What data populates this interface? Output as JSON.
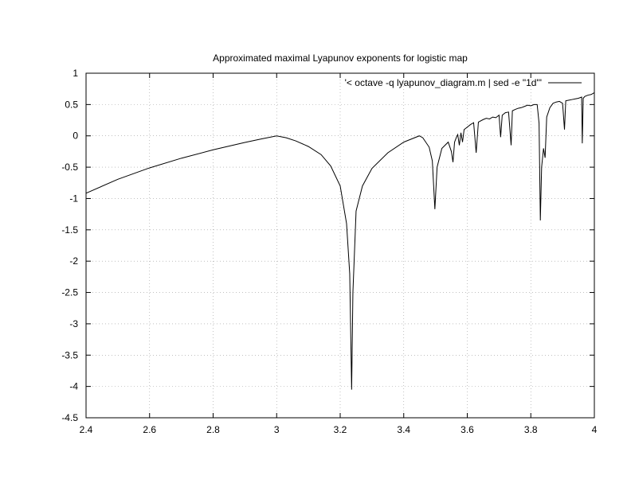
{
  "chart_data": {
    "type": "line",
    "title": "Approximated maximal Lyapunov exponents for logistic map",
    "xlabel": "",
    "ylabel": "",
    "xlim": [
      2.4,
      4.0
    ],
    "ylim": [
      -4.5,
      1.0
    ],
    "x_ticks": [
      "2.4",
      "2.6",
      "2.8",
      "3",
      "3.2",
      "3.4",
      "3.6",
      "3.8",
      "4"
    ],
    "y_ticks": [
      "1",
      "0.5",
      "0",
      "-0.5",
      "-1",
      "-1.5",
      "-2",
      "-2.5",
      "-3",
      "-3.5",
      "-4",
      "-4.5"
    ],
    "grid": true,
    "legend": "top-right",
    "series": [
      {
        "name": "'< octave -q lyapunov_diagram.m | sed -e \"1d\"'",
        "color": "#000000",
        "points": [
          [
            2.4,
            -0.916
          ],
          [
            2.5,
            -0.693
          ],
          [
            2.6,
            -0.511
          ],
          [
            2.7,
            -0.357
          ],
          [
            2.8,
            -0.223
          ],
          [
            2.9,
            -0.105
          ],
          [
            2.95,
            -0.051
          ],
          [
            3.0,
            0.0
          ],
          [
            3.03,
            -0.03
          ],
          [
            3.06,
            -0.08
          ],
          [
            3.1,
            -0.17
          ],
          [
            3.14,
            -0.3
          ],
          [
            3.17,
            -0.48
          ],
          [
            3.2,
            -0.8
          ],
          [
            3.22,
            -1.4
          ],
          [
            3.23,
            -2.2
          ],
          [
            3.236,
            -4.05
          ],
          [
            3.24,
            -2.5
          ],
          [
            3.25,
            -1.2
          ],
          [
            3.27,
            -0.8
          ],
          [
            3.3,
            -0.52
          ],
          [
            3.35,
            -0.27
          ],
          [
            3.4,
            -0.1
          ],
          [
            3.449,
            0.0
          ],
          [
            3.46,
            -0.03
          ],
          [
            3.48,
            -0.18
          ],
          [
            3.49,
            -0.4
          ],
          [
            3.498,
            -1.17
          ],
          [
            3.505,
            -0.5
          ],
          [
            3.52,
            -0.2
          ],
          [
            3.54,
            -0.1
          ],
          [
            3.55,
            -0.25
          ],
          [
            3.555,
            -0.42
          ],
          [
            3.56,
            -0.1
          ],
          [
            3.566,
            -0.02
          ],
          [
            3.57,
            0.02
          ],
          [
            3.575,
            -0.15
          ],
          [
            3.58,
            0.05
          ],
          [
            3.585,
            -0.1
          ],
          [
            3.59,
            0.1
          ],
          [
            3.6,
            0.14
          ],
          [
            3.61,
            0.18
          ],
          [
            3.62,
            0.21
          ],
          [
            3.628,
            -0.27
          ],
          [
            3.635,
            0.22
          ],
          [
            3.65,
            0.26
          ],
          [
            3.66,
            0.28
          ],
          [
            3.67,
            0.27
          ],
          [
            3.68,
            0.3
          ],
          [
            3.69,
            0.29
          ],
          [
            3.7,
            0.33
          ],
          [
            3.705,
            -0.02
          ],
          [
            3.71,
            0.33
          ],
          [
            3.72,
            0.37
          ],
          [
            3.73,
            0.38
          ],
          [
            3.738,
            -0.15
          ],
          [
            3.742,
            0.4
          ],
          [
            3.75,
            0.42
          ],
          [
            3.76,
            0.44
          ],
          [
            3.77,
            0.45
          ],
          [
            3.78,
            0.47
          ],
          [
            3.79,
            0.49
          ],
          [
            3.8,
            0.48
          ],
          [
            3.81,
            0.5
          ],
          [
            3.82,
            0.5
          ],
          [
            3.826,
            0.2
          ],
          [
            3.83,
            -1.35
          ],
          [
            3.834,
            -0.5
          ],
          [
            3.84,
            -0.2
          ],
          [
            3.845,
            -0.35
          ],
          [
            3.85,
            0.3
          ],
          [
            3.86,
            0.45
          ],
          [
            3.87,
            0.52
          ],
          [
            3.88,
            0.54
          ],
          [
            3.89,
            0.55
          ],
          [
            3.9,
            0.52
          ],
          [
            3.906,
            0.1
          ],
          [
            3.91,
            0.56
          ],
          [
            3.92,
            0.57
          ],
          [
            3.93,
            0.58
          ],
          [
            3.94,
            0.59
          ],
          [
            3.95,
            0.6
          ],
          [
            3.96,
            0.62
          ],
          [
            3.962,
            -0.12
          ],
          [
            3.965,
            0.6
          ],
          [
            3.97,
            0.63
          ],
          [
            3.98,
            0.65
          ],
          [
            3.99,
            0.66
          ],
          [
            4.0,
            0.69
          ]
        ]
      }
    ]
  }
}
